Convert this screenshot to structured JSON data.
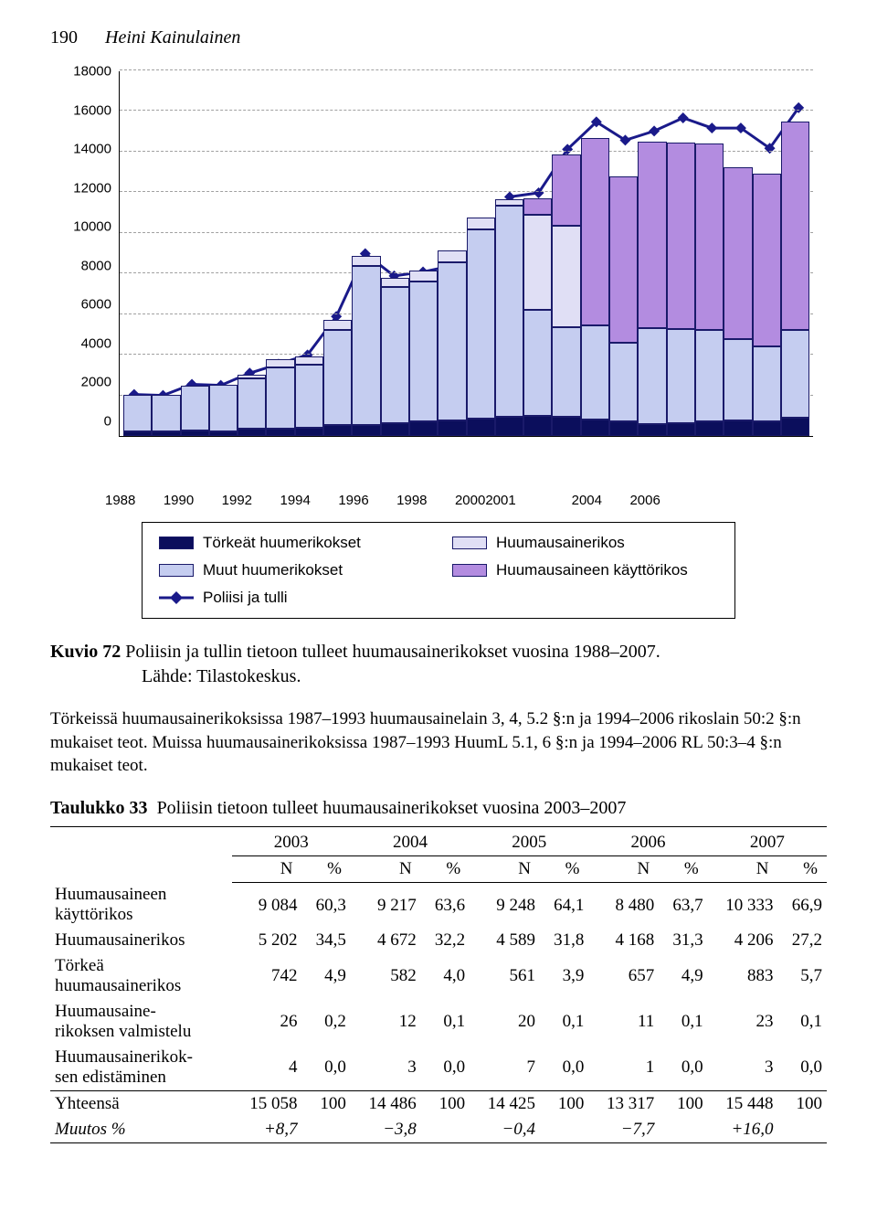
{
  "header": {
    "page_number": "190",
    "author": "Heini Kainulainen"
  },
  "chart": {
    "type": "stacked-bar-with-line",
    "ylim": [
      0,
      18000
    ],
    "ytick_step": 2000,
    "yticks": [
      "18000",
      "16000",
      "14000",
      "12000",
      "10000",
      "8000",
      "6000",
      "4000",
      "2000",
      "0"
    ],
    "background_color": "#ffffff",
    "grid_color": "#a0a0a0",
    "line_color": "#1a1a8a",
    "line_width": 3,
    "marker_color": "#1a1a8a",
    "marker_size": 6,
    "colors": {
      "torkeat": "#0b0e5c",
      "muut": "#c5cdf0",
      "huumausainerikos": "#e0dff5",
      "kayttorikos": "#b38ce0"
    },
    "years": [
      "1988",
      "1990",
      "1992",
      "1994",
      "1996",
      "1998",
      "2000",
      "2001",
      "2004",
      "2006"
    ],
    "bars": [
      {
        "items": [
          220,
          1800,
          0,
          0
        ],
        "line": 2050
      },
      {
        "items": [
          230,
          1800,
          0,
          0
        ],
        "line": 2000
      },
      {
        "items": [
          280,
          2200,
          0,
          0
        ],
        "line": 2550
      },
      {
        "items": [
          210,
          2300,
          0,
          0
        ],
        "line": 2500
      },
      {
        "items": [
          350,
          2500,
          170,
          0
        ],
        "line": 3100
      },
      {
        "items": [
          380,
          3000,
          400,
          0
        ],
        "line": 3550
      },
      {
        "items": [
          420,
          3100,
          400,
          0
        ],
        "line": 4000
      },
      {
        "items": [
          520,
          4700,
          500,
          0
        ],
        "line": 5900
      },
      {
        "items": [
          550,
          7800,
          500,
          0
        ],
        "line": 9000
      },
      {
        "items": [
          650,
          6700,
          450,
          0
        ],
        "line": 7900
      },
      {
        "items": [
          700,
          6900,
          550,
          0
        ],
        "line": 8100
      },
      {
        "items": [
          750,
          7800,
          600,
          0
        ],
        "line": 8400
      },
      {
        "items": [
          850,
          9300,
          600,
          0
        ],
        "line": 9400
      },
      {
        "items": [
          950,
          10400,
          300,
          0
        ],
        "line": 11800
      },
      {
        "items": [
          1000,
          5200,
          4700,
          800
        ],
        "line": 12000
      },
      {
        "items": [
          950,
          4400,
          5000,
          3500
        ],
        "line": 14150
      },
      {
        "items": [
          800,
          4650,
          0,
          9200
        ],
        "line": 15500
      },
      {
        "items": [
          700,
          3900,
          0,
          8200
        ],
        "line": 14600
      },
      {
        "items": [
          600,
          4700,
          0,
          9200
        ],
        "line": 15050
      },
      {
        "items": [
          650,
          4600,
          0,
          9200
        ],
        "line": 15700
      },
      {
        "items": [
          700,
          4500,
          0,
          9200
        ],
        "line": 15200
      },
      {
        "items": [
          750,
          4000,
          0,
          8500
        ],
        "line": 15200
      },
      {
        "items": [
          700,
          3700,
          0,
          8500
        ],
        "line": 14200
      },
      {
        "items": [
          900,
          4300,
          0,
          10300
        ],
        "line": 16200
      }
    ],
    "legend": [
      {
        "key": "torkeat",
        "label": "Törkeät huumerikokset"
      },
      {
        "key": "huumausainerikos",
        "label": "Huumausainerikos"
      },
      {
        "key": "muut",
        "label": "Muut huumerikokset"
      },
      {
        "key": "kayttorikos",
        "label": "Huumausaineen käyttörikos"
      },
      {
        "key": "line",
        "label": "Poliisi ja tulli"
      }
    ]
  },
  "caption": {
    "prefix": "Kuvio 72",
    "text": "Poliisin ja tullin tietoon tulleet huumausainerikokset vuosina 1988–2007.",
    "source": "Lähde: Tilastokeskus."
  },
  "body": "Törkeissä huumausainerikoksissa 1987–1993 huumausainelain 3, 4, 5.2 §:n ja 1994–2006 rikoslain 50:2 §:n mukaiset teot. Muissa huumausainerikoksissa 1987–1993 HuumL 5.1, 6 §:n ja 1994–2006 RL 50:3–4 §:n mukaiset teot.",
  "table": {
    "title_prefix": "Taulukko 33",
    "title": "Poliisin tietoon tulleet huumausainerikokset vuosina 2003–2007",
    "years": [
      "2003",
      "2004",
      "2005",
      "2006",
      "2007"
    ],
    "subhead_n": "N",
    "subhead_pct": "%",
    "rows": [
      {
        "label": "Huumausaineen käyttörikos",
        "cells": [
          "9 084",
          "60,3",
          "9 217",
          "63,6",
          "9 248",
          "64,1",
          "8 480",
          "63,7",
          "10 333",
          "66,9"
        ],
        "two_line": true
      },
      {
        "label": "Huumausainerikos",
        "cells": [
          "5 202",
          "34,5",
          "4 672",
          "32,2",
          "4 589",
          "31,8",
          "4 168",
          "31,3",
          "4 206",
          "27,2"
        ]
      },
      {
        "label": "Törkeä huumausainerikos",
        "cells": [
          "742",
          "4,9",
          "582",
          "4,0",
          "561",
          "3,9",
          "657",
          "4,9",
          "883",
          "5,7"
        ],
        "two_line": true
      },
      {
        "label": "Huumausaine- rikoksen valmistelu",
        "cells": [
          "26",
          "0,2",
          "12",
          "0,1",
          "20",
          "0,1",
          "11",
          "0,1",
          "23",
          "0,1"
        ],
        "two_line": true
      },
      {
        "label": "Huumausainerikok- sen edistäminen",
        "cells": [
          "4",
          "0,0",
          "3",
          "0,0",
          "7",
          "0,0",
          "1",
          "0,0",
          "3",
          "0,0"
        ],
        "two_line": true
      }
    ],
    "total": {
      "label": "Yhteensä",
      "cells": [
        "15 058",
        "100",
        "14 486",
        "100",
        "14 425",
        "100",
        "13 317",
        "100",
        "15 448",
        "100"
      ]
    },
    "change": {
      "label": "Muutos %",
      "cells": [
        "+8,7",
        "",
        "−3,8",
        "",
        "−0,4",
        "",
        "−7,7",
        "",
        "+16,0",
        ""
      ]
    }
  }
}
